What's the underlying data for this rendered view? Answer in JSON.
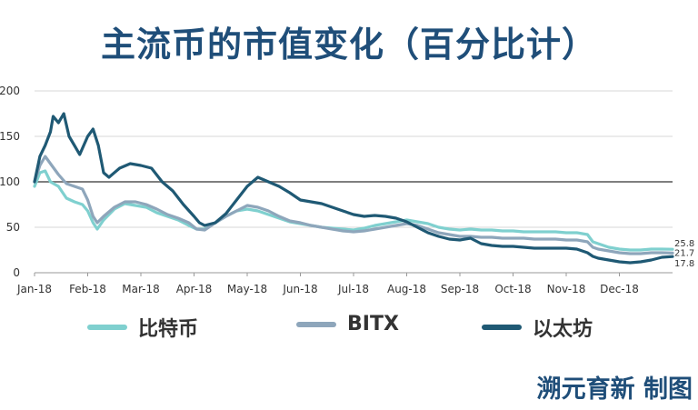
{
  "header": {
    "title": "主流币的市值变化（百分比计）"
  },
  "footer": {
    "credit": "溯元育新 制图"
  },
  "colors": {
    "btc": "#7fd0cf",
    "bitx": "#8ea6bb",
    "eth": "#1f5974",
    "grid": "#d7d7d7",
    "ref100": "#7f7f7f"
  },
  "chart_data": {
    "type": "line",
    "title": "主流币的市值变化（百分比计）",
    "xlabel": "",
    "ylabel": "",
    "x_ticks": [
      "Jan-18",
      "Feb-18",
      "Mar-18",
      "Apr-18",
      "May-18",
      "Jun-18",
      "Jul-18",
      "Aug-18",
      "Sep-18",
      "Oct-18",
      "Nov-18",
      "Dec-18"
    ],
    "y_ticks": [
      0,
      50,
      100,
      150,
      200
    ],
    "xlim": [
      0,
      12
    ],
    "ylim": [
      0,
      200
    ],
    "reference_line": 100,
    "grid": true,
    "legend_position": "bottom",
    "series": [
      {
        "name": "比特币",
        "key": "btc",
        "end_label": "25.8",
        "points": [
          [
            0,
            95
          ],
          [
            0.1,
            110
          ],
          [
            0.2,
            112
          ],
          [
            0.3,
            100
          ],
          [
            0.45,
            95
          ],
          [
            0.6,
            82
          ],
          [
            0.75,
            78
          ],
          [
            0.9,
            75
          ],
          [
            1.0,
            68
          ],
          [
            1.1,
            55
          ],
          [
            1.18,
            48
          ],
          [
            1.3,
            58
          ],
          [
            1.5,
            70
          ],
          [
            1.7,
            76
          ],
          [
            1.9,
            74
          ],
          [
            2.1,
            72
          ],
          [
            2.3,
            66
          ],
          [
            2.5,
            62
          ],
          [
            2.7,
            58
          ],
          [
            2.9,
            52
          ],
          [
            3.05,
            48
          ],
          [
            3.2,
            48
          ],
          [
            3.4,
            55
          ],
          [
            3.6,
            62
          ],
          [
            3.8,
            68
          ],
          [
            4.0,
            70
          ],
          [
            4.2,
            68
          ],
          [
            4.4,
            64
          ],
          [
            4.6,
            60
          ],
          [
            4.8,
            56
          ],
          [
            5.0,
            54
          ],
          [
            5.2,
            52
          ],
          [
            5.4,
            50
          ],
          [
            5.6,
            49
          ],
          [
            5.8,
            48
          ],
          [
            6.0,
            47
          ],
          [
            6.2,
            49
          ],
          [
            6.4,
            52
          ],
          [
            6.6,
            54
          ],
          [
            6.8,
            56
          ],
          [
            7.0,
            58
          ],
          [
            7.2,
            56
          ],
          [
            7.4,
            54
          ],
          [
            7.6,
            50
          ],
          [
            7.8,
            48
          ],
          [
            8.0,
            47
          ],
          [
            8.2,
            48
          ],
          [
            8.4,
            47
          ],
          [
            8.6,
            47
          ],
          [
            8.8,
            46
          ],
          [
            9.0,
            46
          ],
          [
            9.2,
            45
          ],
          [
            9.4,
            45
          ],
          [
            9.6,
            45
          ],
          [
            9.8,
            45
          ],
          [
            10.0,
            44
          ],
          [
            10.2,
            44
          ],
          [
            10.4,
            42
          ],
          [
            10.5,
            34
          ],
          [
            10.6,
            32
          ],
          [
            10.8,
            28
          ],
          [
            11.0,
            26
          ],
          [
            11.2,
            25
          ],
          [
            11.4,
            25
          ],
          [
            11.6,
            26
          ],
          [
            11.8,
            26
          ],
          [
            12.0,
            25.8
          ]
        ]
      },
      {
        "name": "BITX",
        "key": "bitx",
        "end_label": "21.7",
        "points": [
          [
            0,
            100
          ],
          [
            0.1,
            118
          ],
          [
            0.2,
            128
          ],
          [
            0.3,
            120
          ],
          [
            0.45,
            108
          ],
          [
            0.6,
            98
          ],
          [
            0.75,
            95
          ],
          [
            0.9,
            92
          ],
          [
            1.0,
            80
          ],
          [
            1.1,
            62
          ],
          [
            1.18,
            55
          ],
          [
            1.3,
            62
          ],
          [
            1.5,
            72
          ],
          [
            1.7,
            78
          ],
          [
            1.9,
            78
          ],
          [
            2.1,
            75
          ],
          [
            2.3,
            70
          ],
          [
            2.5,
            64
          ],
          [
            2.7,
            60
          ],
          [
            2.9,
            55
          ],
          [
            3.05,
            48
          ],
          [
            3.2,
            47
          ],
          [
            3.4,
            55
          ],
          [
            3.6,
            62
          ],
          [
            3.8,
            68
          ],
          [
            4.0,
            74
          ],
          [
            4.2,
            72
          ],
          [
            4.4,
            68
          ],
          [
            4.6,
            62
          ],
          [
            4.8,
            57
          ],
          [
            5.0,
            55
          ],
          [
            5.2,
            52
          ],
          [
            5.4,
            50
          ],
          [
            5.6,
            48
          ],
          [
            5.8,
            46
          ],
          [
            6.0,
            45
          ],
          [
            6.2,
            46
          ],
          [
            6.4,
            48
          ],
          [
            6.6,
            50
          ],
          [
            6.8,
            52
          ],
          [
            7.0,
            54
          ],
          [
            7.2,
            52
          ],
          [
            7.4,
            48
          ],
          [
            7.6,
            44
          ],
          [
            7.8,
            42
          ],
          [
            8.0,
            40
          ],
          [
            8.2,
            40
          ],
          [
            8.4,
            39
          ],
          [
            8.6,
            39
          ],
          [
            8.8,
            38
          ],
          [
            9.0,
            38
          ],
          [
            9.2,
            38
          ],
          [
            9.4,
            37
          ],
          [
            9.6,
            37
          ],
          [
            9.8,
            37
          ],
          [
            10.0,
            36
          ],
          [
            10.2,
            36
          ],
          [
            10.4,
            34
          ],
          [
            10.5,
            28
          ],
          [
            10.6,
            26
          ],
          [
            10.8,
            24
          ],
          [
            11.0,
            22
          ],
          [
            11.2,
            21
          ],
          [
            11.4,
            21
          ],
          [
            11.6,
            22
          ],
          [
            11.8,
            22
          ],
          [
            12.0,
            21.7
          ]
        ]
      },
      {
        "name": "以太坊",
        "key": "eth",
        "end_label": "17.8",
        "points": [
          [
            0,
            100
          ],
          [
            0.1,
            128
          ],
          [
            0.2,
            140
          ],
          [
            0.3,
            155
          ],
          [
            0.35,
            172
          ],
          [
            0.45,
            165
          ],
          [
            0.55,
            175
          ],
          [
            0.65,
            150
          ],
          [
            0.75,
            140
          ],
          [
            0.85,
            130
          ],
          [
            1.0,
            150
          ],
          [
            1.1,
            158
          ],
          [
            1.2,
            140
          ],
          [
            1.3,
            110
          ],
          [
            1.4,
            105
          ],
          [
            1.6,
            115
          ],
          [
            1.8,
            120
          ],
          [
            2.0,
            118
          ],
          [
            2.2,
            115
          ],
          [
            2.4,
            100
          ],
          [
            2.6,
            90
          ],
          [
            2.8,
            75
          ],
          [
            3.0,
            62
          ],
          [
            3.1,
            55
          ],
          [
            3.2,
            52
          ],
          [
            3.4,
            55
          ],
          [
            3.6,
            65
          ],
          [
            3.8,
            80
          ],
          [
            4.0,
            95
          ],
          [
            4.2,
            105
          ],
          [
            4.4,
            100
          ],
          [
            4.6,
            95
          ],
          [
            4.8,
            88
          ],
          [
            5.0,
            80
          ],
          [
            5.2,
            78
          ],
          [
            5.4,
            76
          ],
          [
            5.6,
            72
          ],
          [
            5.8,
            68
          ],
          [
            6.0,
            64
          ],
          [
            6.2,
            62
          ],
          [
            6.4,
            63
          ],
          [
            6.6,
            62
          ],
          [
            6.8,
            60
          ],
          [
            7.0,
            56
          ],
          [
            7.2,
            50
          ],
          [
            7.4,
            44
          ],
          [
            7.6,
            40
          ],
          [
            7.8,
            37
          ],
          [
            8.0,
            36
          ],
          [
            8.2,
            38
          ],
          [
            8.4,
            32
          ],
          [
            8.6,
            30
          ],
          [
            8.8,
            29
          ],
          [
            9.0,
            29
          ],
          [
            9.2,
            28
          ],
          [
            9.4,
            27
          ],
          [
            9.6,
            27
          ],
          [
            9.8,
            27
          ],
          [
            10.0,
            27
          ],
          [
            10.2,
            26
          ],
          [
            10.4,
            22
          ],
          [
            10.5,
            18
          ],
          [
            10.6,
            16
          ],
          [
            10.8,
            14
          ],
          [
            11.0,
            12
          ],
          [
            11.2,
            11
          ],
          [
            11.4,
            12
          ],
          [
            11.6,
            14
          ],
          [
            11.8,
            17
          ],
          [
            12.0,
            17.8
          ]
        ]
      }
    ]
  }
}
